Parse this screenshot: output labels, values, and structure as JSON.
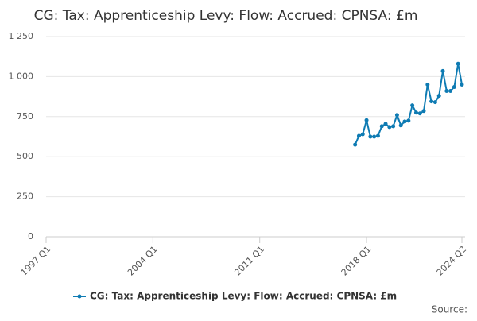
{
  "chart_data": {
    "type": "line",
    "title": "CG: Tax: Apprenticeship Levy: Flow: Accrued: CPNSA: £m",
    "x": [
      2017.25,
      2017.5,
      2017.75,
      2018.0,
      2018.25,
      2018.5,
      2018.75,
      2019.0,
      2019.25,
      2019.5,
      2019.75,
      2020.0,
      2020.25,
      2020.5,
      2020.75,
      2021.0,
      2021.25,
      2021.5,
      2021.75,
      2022.0,
      2022.25,
      2022.5,
      2022.75,
      2023.0,
      2023.25,
      2023.5,
      2023.75,
      2024.0,
      2024.25
    ],
    "series": [
      {
        "name": "CG: Tax: Apprenticeship Levy: Flow: Accrued: CPNSA: £m",
        "color": "#0e7bb3",
        "values": [
          575,
          630,
          640,
          728,
          625,
          625,
          630,
          690,
          705,
          685,
          690,
          760,
          695,
          720,
          725,
          820,
          775,
          770,
          785,
          950,
          845,
          840,
          880,
          1035,
          910,
          910,
          935,
          1080,
          950
        ]
      }
    ],
    "xlim": [
      1997.0,
      2024.25
    ],
    "xticks": [
      {
        "value": 1997.0,
        "label": "1997 Q1"
      },
      {
        "value": 2004.0,
        "label": "2004 Q1"
      },
      {
        "value": 2011.0,
        "label": "2011 Q1"
      },
      {
        "value": 2018.0,
        "label": "2018 Q1"
      },
      {
        "value": 2024.25,
        "label": "2024 Q2"
      }
    ],
    "ylim": [
      0,
      1250
    ],
    "yticks": [
      0,
      250,
      500,
      750,
      {
        "value": 1000,
        "label": "1 000"
      },
      {
        "value": 1250,
        "label": "1 250"
      }
    ],
    "grid": true,
    "source": "Source:"
  }
}
